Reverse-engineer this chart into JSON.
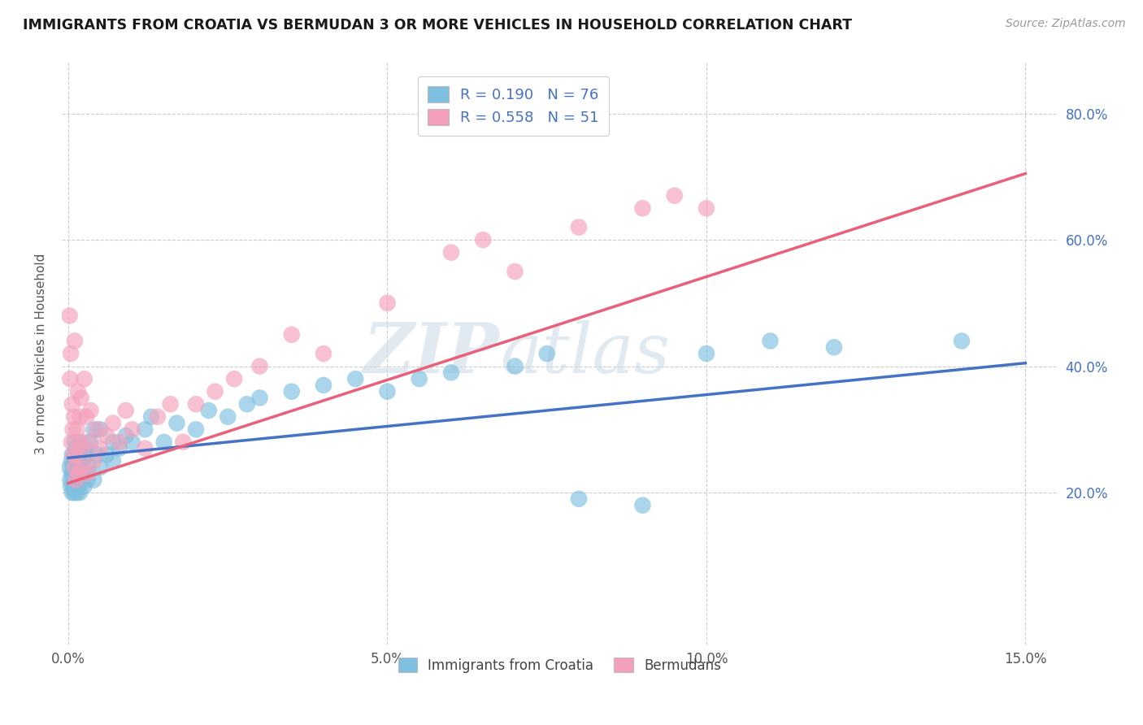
{
  "title": "IMMIGRANTS FROM CROATIA VS BERMUDAN 3 OR MORE VEHICLES IN HOUSEHOLD CORRELATION CHART",
  "source": "Source: ZipAtlas.com",
  "xlabel_blue": "Immigrants from Croatia",
  "xlabel_pink": "Bermudans",
  "ylabel": "3 or more Vehicles in Household",
  "xlim": [
    -0.001,
    0.155
  ],
  "ylim": [
    -0.04,
    0.88
  ],
  "xtick_labels": [
    "0.0%",
    "5.0%",
    "10.0%",
    "15.0%"
  ],
  "xtick_vals": [
    0.0,
    0.05,
    0.1,
    0.15
  ],
  "ytick_labels": [
    "20.0%",
    "40.0%",
    "60.0%",
    "80.0%"
  ],
  "ytick_vals": [
    0.2,
    0.4,
    0.6,
    0.8
  ],
  "blue_R": 0.19,
  "blue_N": 76,
  "pink_R": 0.558,
  "pink_N": 51,
  "blue_color": "#7fbfdf",
  "pink_color": "#f4a0bb",
  "blue_line_color": "#4472c4",
  "pink_line_color": "#e8607a",
  "watermark_zip": "ZIP",
  "watermark_atlas": "atlas",
  "background_color": "#ffffff",
  "grid_color": "#cccccc",
  "blue_trend_x": [
    0.0,
    0.15
  ],
  "blue_trend_y": [
    0.255,
    0.405
  ],
  "pink_trend_x": [
    0.0,
    0.15
  ],
  "pink_trend_y": [
    0.215,
    0.705
  ],
  "blue_scatter_x": [
    0.0002,
    0.0003,
    0.0004,
    0.0005,
    0.0005,
    0.0006,
    0.0006,
    0.0007,
    0.0007,
    0.0008,
    0.0008,
    0.0009,
    0.0009,
    0.001,
    0.001,
    0.001,
    0.001,
    0.0012,
    0.0012,
    0.0013,
    0.0013,
    0.0014,
    0.0014,
    0.0015,
    0.0015,
    0.0016,
    0.0016,
    0.0017,
    0.0018,
    0.0018,
    0.002,
    0.002,
    0.002,
    0.0022,
    0.0023,
    0.0025,
    0.0026,
    0.0028,
    0.003,
    0.003,
    0.0032,
    0.0035,
    0.004,
    0.004,
    0.0045,
    0.005,
    0.005,
    0.006,
    0.007,
    0.007,
    0.008,
    0.009,
    0.01,
    0.012,
    0.013,
    0.015,
    0.017,
    0.02,
    0.022,
    0.025,
    0.028,
    0.03,
    0.035,
    0.04,
    0.045,
    0.05,
    0.055,
    0.06,
    0.07,
    0.075,
    0.08,
    0.09,
    0.1,
    0.11,
    0.12,
    0.14
  ],
  "blue_scatter_y": [
    0.24,
    0.22,
    0.21,
    0.23,
    0.25,
    0.2,
    0.26,
    0.22,
    0.24,
    0.21,
    0.23,
    0.2,
    0.25,
    0.22,
    0.24,
    0.26,
    0.28,
    0.21,
    0.27,
    0.23,
    0.25,
    0.2,
    0.22,
    0.24,
    0.23,
    0.21,
    0.25,
    0.22,
    0.2,
    0.24,
    0.22,
    0.26,
    0.28,
    0.23,
    0.25,
    0.21,
    0.27,
    0.23,
    0.22,
    0.26,
    0.24,
    0.28,
    0.22,
    0.3,
    0.26,
    0.24,
    0.3,
    0.26,
    0.25,
    0.28,
    0.27,
    0.29,
    0.28,
    0.3,
    0.32,
    0.28,
    0.31,
    0.3,
    0.33,
    0.32,
    0.34,
    0.35,
    0.36,
    0.37,
    0.38,
    0.36,
    0.38,
    0.39,
    0.4,
    0.42,
    0.19,
    0.18,
    0.42,
    0.44,
    0.43,
    0.44
  ],
  "pink_scatter_x": [
    0.0002,
    0.0003,
    0.0004,
    0.0005,
    0.0006,
    0.0007,
    0.0008,
    0.0009,
    0.001,
    0.001,
    0.0012,
    0.0013,
    0.0014,
    0.0015,
    0.0016,
    0.0017,
    0.0018,
    0.002,
    0.002,
    0.0022,
    0.0025,
    0.0028,
    0.003,
    0.0032,
    0.0035,
    0.004,
    0.0045,
    0.005,
    0.006,
    0.007,
    0.008,
    0.009,
    0.01,
    0.012,
    0.014,
    0.016,
    0.018,
    0.02,
    0.023,
    0.026,
    0.03,
    0.035,
    0.04,
    0.05,
    0.06,
    0.065,
    0.07,
    0.08,
    0.09,
    0.095,
    0.1
  ],
  "pink_scatter_y": [
    0.48,
    0.38,
    0.42,
    0.28,
    0.34,
    0.3,
    0.26,
    0.32,
    0.24,
    0.44,
    0.22,
    0.26,
    0.3,
    0.36,
    0.23,
    0.28,
    0.32,
    0.24,
    0.35,
    0.27,
    0.38,
    0.32,
    0.23,
    0.28,
    0.33,
    0.25,
    0.3,
    0.27,
    0.29,
    0.31,
    0.28,
    0.33,
    0.3,
    0.27,
    0.32,
    0.34,
    0.28,
    0.34,
    0.36,
    0.38,
    0.4,
    0.45,
    0.42,
    0.5,
    0.58,
    0.6,
    0.55,
    0.62,
    0.65,
    0.67,
    0.65
  ]
}
